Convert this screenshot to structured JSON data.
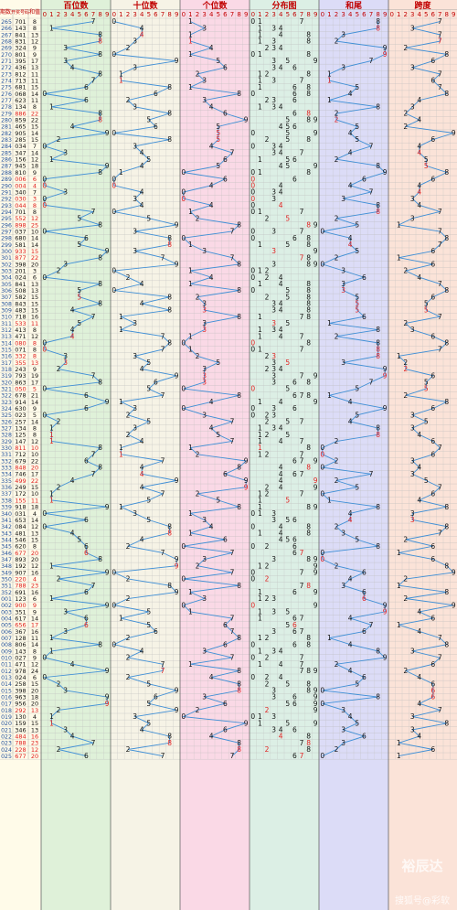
{
  "chart_data": {
    "type": "line",
    "header": {
      "col_issue": "期数",
      "col_code": "开奖号码",
      "col_sum": "和值",
      "sections": [
        "百位数",
        "十位数",
        "个位数",
        "分布图",
        "和尾",
        "跨度"
      ],
      "digits": [
        "0",
        "1",
        "2",
        "3",
        "4",
        "5",
        "6",
        "7",
        "8",
        "9"
      ]
    },
    "rows": [
      [
        "265",
        "701",
        8
      ],
      [
        "266",
        "143",
        8
      ],
      [
        "267",
        "841",
        13
      ],
      [
        "268",
        "831",
        12
      ],
      [
        "269",
        "324",
        9
      ],
      [
        "270",
        "801",
        9
      ],
      [
        "271",
        "395",
        17
      ],
      [
        "272",
        "436",
        13
      ],
      [
        "273",
        "812",
        11
      ],
      [
        "274",
        "713",
        11
      ],
      [
        "275",
        "681",
        15
      ],
      [
        "276",
        "068",
        14
      ],
      [
        "277",
        "623",
        11
      ],
      [
        "278",
        "134",
        8
      ],
      [
        "279",
        "886",
        22
      ],
      [
        "280",
        "859",
        22
      ],
      [
        "281",
        "465",
        15
      ],
      [
        "282",
        "905",
        14
      ],
      [
        "283",
        "285",
        15
      ],
      [
        "284",
        "034",
        7
      ],
      [
        "285",
        "347",
        14
      ],
      [
        "286",
        "156",
        12
      ],
      [
        "287",
        "945",
        18
      ],
      [
        "288",
        "810",
        9
      ],
      [
        "289",
        "006",
        6
      ],
      [
        "290",
        "004",
        4
      ],
      [
        "291",
        "340",
        7
      ],
      [
        "292",
        "030",
        3
      ],
      [
        "293",
        "044",
        8
      ],
      [
        "294",
        "701",
        8
      ],
      [
        "295",
        "552",
        12
      ],
      [
        "296",
        "898",
        25
      ],
      [
        "297",
        "037",
        10
      ],
      [
        "298",
        "680",
        14
      ],
      [
        "299",
        "581",
        14
      ],
      [
        "300",
        "933",
        15
      ],
      [
        "301",
        "877",
        22
      ],
      [
        "302",
        "398",
        20
      ],
      [
        "303",
        "201",
        3
      ],
      [
        "304",
        "024",
        6
      ],
      [
        "305",
        "841",
        13
      ],
      [
        "306",
        "508",
        13
      ],
      [
        "307",
        "582",
        15
      ],
      [
        "308",
        "843",
        15
      ],
      [
        "309",
        "483",
        15
      ],
      [
        "310",
        "718",
        16
      ],
      [
        "311",
        "533",
        11
      ],
      [
        "312",
        "413",
        8
      ],
      [
        "313",
        "471",
        12
      ],
      [
        "314",
        "080",
        8
      ],
      [
        "315",
        "071",
        8
      ],
      [
        "316",
        "332",
        8
      ],
      [
        "317",
        "355",
        13
      ],
      [
        "318",
        "243",
        9
      ],
      [
        "319",
        "793",
        19
      ],
      [
        "320",
        "863",
        17
      ],
      [
        "321",
        "050",
        5
      ],
      [
        "322",
        "678",
        21
      ],
      [
        "323",
        "914",
        14
      ],
      [
        "324",
        "630",
        9
      ],
      [
        "325",
        "023",
        5
      ],
      [
        "326",
        "257",
        14
      ],
      [
        "327",
        "134",
        8
      ],
      [
        "328",
        "125",
        8
      ],
      [
        "329",
        "147",
        12
      ],
      [
        "330",
        "811",
        10
      ],
      [
        "331",
        "712",
        10
      ],
      [
        "332",
        "679",
        22
      ],
      [
        "333",
        "848",
        20
      ],
      [
        "334",
        "746",
        17
      ],
      [
        "335",
        "499",
        22
      ],
      [
        "336",
        "249",
        15
      ],
      [
        "337",
        "172",
        10
      ],
      [
        "338",
        "155",
        11
      ],
      [
        "339",
        "918",
        18
      ],
      [
        "340",
        "031",
        4
      ],
      [
        "341",
        "653",
        14
      ],
      [
        "342",
        "084",
        12
      ],
      [
        "343",
        "481",
        13
      ],
      [
        "344",
        "546",
        15
      ],
      [
        "345",
        "620",
        8
      ],
      [
        "346",
        "677",
        20
      ],
      [
        "347",
        "893",
        20
      ],
      [
        "348",
        "192",
        12
      ],
      [
        "349",
        "907",
        16
      ],
      [
        "350",
        "220",
        4
      ],
      [
        "351",
        "788",
        23
      ],
      [
        "352",
        "691",
        16
      ],
      [
        "001",
        "123",
        6
      ],
      [
        "002",
        "900",
        9
      ],
      [
        "003",
        "351",
        9
      ],
      [
        "004",
        "617",
        14
      ],
      [
        "005",
        "656",
        17
      ],
      [
        "006",
        "367",
        16
      ],
      [
        "007",
        "128",
        11
      ],
      [
        "008",
        "806",
        14
      ],
      [
        "009",
        "143",
        8
      ],
      [
        "010",
        "027",
        9
      ],
      [
        "011",
        "471",
        12
      ],
      [
        "012",
        "978",
        24
      ],
      [
        "013",
        "024",
        6
      ],
      [
        "014",
        "258",
        15
      ],
      [
        "015",
        "398",
        20
      ],
      [
        "016",
        "963",
        18
      ],
      [
        "017",
        "956",
        20
      ],
      [
        "018",
        "292",
        13
      ],
      [
        "019",
        "130",
        4
      ],
      [
        "020",
        "159",
        15
      ],
      [
        "021",
        "346",
        13
      ],
      [
        "022",
        "484",
        16
      ],
      [
        "023",
        "788",
        23
      ],
      [
        "024",
        "228",
        12
      ],
      [
        "025",
        "677",
        20
      ]
    ],
    "watermark_brand": "裕辰达",
    "watermark_source": "搜狐号@彩软"
  }
}
